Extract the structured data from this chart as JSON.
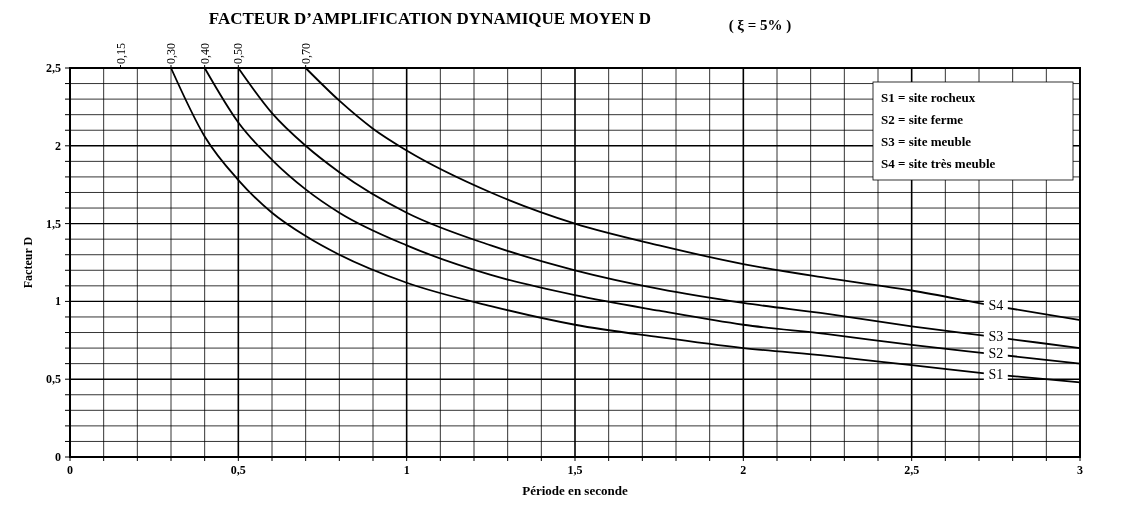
{
  "chart_data": {
    "type": "line",
    "title": "FACTEUR D’AMPLIFICATION DYNAMIQUE MOYEN D",
    "subtitle": "( ξ = 5% )",
    "xlabel": "Période en seconde",
    "ylabel": "Facteur D",
    "xlim": [
      0,
      3
    ],
    "ylim": [
      0,
      2.5
    ],
    "xticks": [
      0,
      {
        "value": 0.1,
        "label": null
      },
      {
        "value": 0.2,
        "label": null
      },
      {
        "value": 0.3,
        "label": null
      },
      {
        "value": 0.4,
        "label": null
      },
      {
        "value": 0.5,
        "label": "0,5"
      },
      {
        "value": 0.6,
        "label": null
      },
      {
        "value": 0.7,
        "label": null
      },
      {
        "value": 0.8,
        "label": null
      },
      {
        "value": 0.9,
        "label": null
      },
      1,
      {
        "value": 1.1,
        "label": null
      },
      {
        "value": 1.2,
        "label": null
      },
      {
        "value": 1.3,
        "label": null
      },
      {
        "value": 1.4,
        "label": null
      },
      {
        "value": 1.5,
        "label": "1,5"
      },
      {
        "value": 1.6,
        "label": null
      },
      {
        "value": 1.7,
        "label": null
      },
      {
        "value": 1.8,
        "label": null
      },
      {
        "value": 1.9,
        "label": null
      },
      2,
      {
        "value": 2.1,
        "label": null
      },
      {
        "value": 2.2,
        "label": null
      },
      {
        "value": 2.3,
        "label": null
      },
      {
        "value": 2.4,
        "label": null
      },
      {
        "value": 2.5,
        "label": "2,5"
      },
      {
        "value": 2.6,
        "label": null
      },
      {
        "value": 2.7,
        "label": null
      },
      {
        "value": 2.8,
        "label": null
      },
      {
        "value": 2.9,
        "label": null
      },
      3
    ],
    "yticks": [
      0,
      {
        "value": 0.1,
        "label": null
      },
      {
        "value": 0.2,
        "label": null
      },
      {
        "value": 0.3,
        "label": null
      },
      {
        "value": 0.4,
        "label": null
      },
      {
        "value": 0.5,
        "label": "0,5"
      },
      {
        "value": 0.6,
        "label": null
      },
      {
        "value": 0.7,
        "label": null
      },
      {
        "value": 0.8,
        "label": null
      },
      {
        "value": 0.9,
        "label": null
      },
      1,
      {
        "value": 1.1,
        "label": null
      },
      {
        "value": 1.2,
        "label": null
      },
      {
        "value": 1.3,
        "label": null
      },
      {
        "value": 1.4,
        "label": null
      },
      {
        "value": 1.5,
        "label": "1,5"
      },
      {
        "value": 1.6,
        "label": null
      },
      {
        "value": 1.7,
        "label": null
      },
      {
        "value": 1.8,
        "label": null
      },
      {
        "value": 1.9,
        "label": null
      },
      2,
      {
        "value": 2.1,
        "label": null
      },
      {
        "value": 2.2,
        "label": null
      },
      {
        "value": 2.3,
        "label": null
      },
      {
        "value": 2.4,
        "label": null
      },
      {
        "value": 2.5,
        "label": "2,5"
      }
    ],
    "x2lim": [
      0,
      3
    ],
    "x2ticks": [
      {
        "value": 0.15,
        "label": "0,15"
      },
      {
        "value": 0.3,
        "label": "0,30"
      },
      {
        "value": 0.4,
        "label": "0,40"
      },
      {
        "value": 0.5,
        "label": "0,50"
      },
      {
        "value": 0.7,
        "label": "0,70"
      }
    ],
    "grid": true,
    "marker": "none",
    "line_style": "solid",
    "annotations": [
      "S1 = site rocheux",
      "S2 = site ferme",
      "S3 = site meuble",
      "S4 = site très meuble"
    ],
    "series": [
      {
        "name": "S1",
        "color": "#000000",
        "x": [
          0.3,
          0.4,
          0.5,
          0.6,
          0.7,
          0.8,
          1.0,
          1.25,
          1.5,
          1.75,
          2.0,
          2.25,
          2.5,
          2.75,
          3.0
        ],
        "values": [
          2.5,
          2.06,
          1.78,
          1.57,
          1.42,
          1.3,
          1.12,
          0.97,
          0.85,
          0.77,
          0.7,
          0.65,
          0.59,
          0.53,
          0.48
        ]
      },
      {
        "name": "S2",
        "color": "#000000",
        "x": [
          0.4,
          0.5,
          0.6,
          0.7,
          0.8,
          1.0,
          1.25,
          1.5,
          1.75,
          2.0,
          2.25,
          2.5,
          2.75,
          3.0
        ],
        "values": [
          2.5,
          2.15,
          1.91,
          1.72,
          1.57,
          1.36,
          1.17,
          1.04,
          0.94,
          0.85,
          0.79,
          0.72,
          0.66,
          0.6
        ]
      },
      {
        "name": "S3",
        "color": "#000000",
        "x": [
          0.5,
          0.6,
          0.7,
          0.8,
          1.0,
          1.25,
          1.5,
          1.75,
          2.0,
          2.25,
          2.5,
          2.75,
          3.0
        ],
        "values": [
          2.5,
          2.21,
          2.0,
          1.83,
          1.57,
          1.36,
          1.2,
          1.08,
          0.99,
          0.92,
          0.84,
          0.77,
          0.7
        ]
      },
      {
        "name": "S4",
        "color": "#000000",
        "x": [
          0.7,
          0.8,
          0.9,
          1.0,
          1.25,
          1.5,
          1.75,
          2.0,
          2.25,
          2.5,
          2.75,
          3.0
        ],
        "values": [
          2.5,
          2.29,
          2.11,
          1.97,
          1.7,
          1.5,
          1.36,
          1.24,
          1.15,
          1.07,
          0.97,
          0.88
        ]
      }
    ]
  }
}
